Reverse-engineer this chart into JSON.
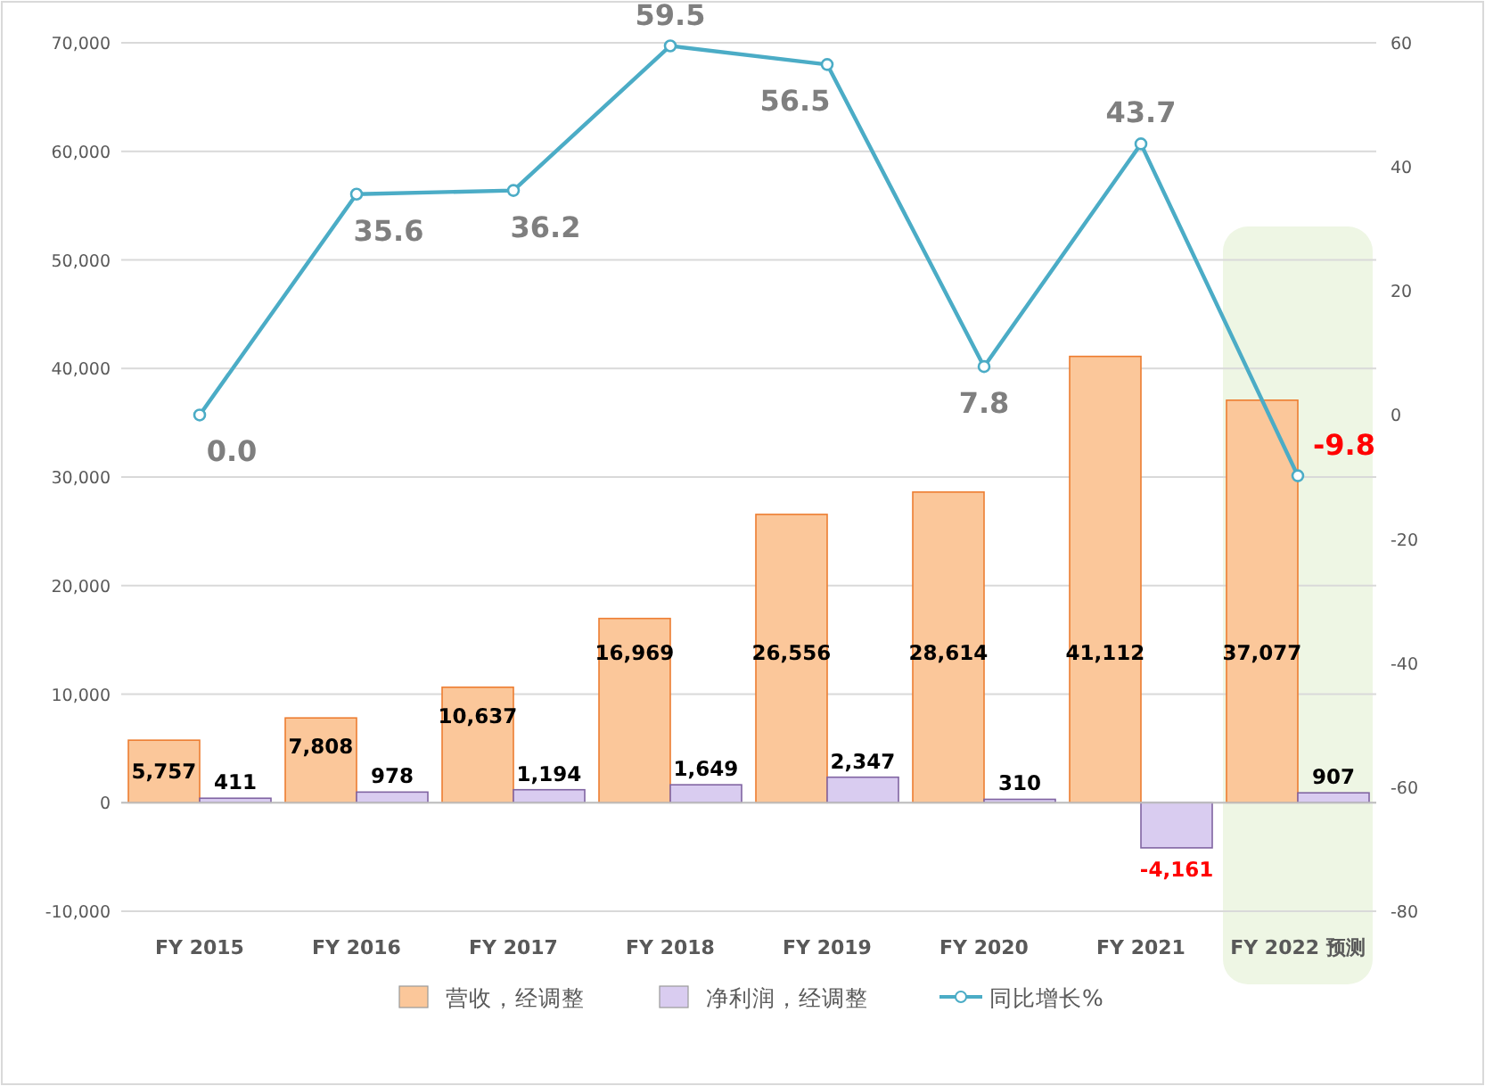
{
  "chart_data": {
    "type": "bar",
    "categories": [
      "FY 2015",
      "FY 2016",
      "FY 2017",
      "FY 2018",
      "FY 2019",
      "FY 2020",
      "FY 2021",
      "FY 2022 预测"
    ],
    "series": [
      {
        "name": "营收，经调整",
        "color": "#fbc79a",
        "values": [
          5757,
          7808,
          10637,
          16969,
          26556,
          28614,
          41112,
          37077
        ],
        "value_labels": [
          "5,757",
          "7,808",
          "10,637",
          "16,969",
          "26,556",
          "28,614",
          "41,112",
          "37,077"
        ]
      },
      {
        "name": "净利润，经调整",
        "color": "#d9ccf0",
        "values": [
          411,
          978,
          1194,
          1649,
          2347,
          310,
          -4161,
          907
        ],
        "value_labels": [
          "411",
          "978",
          "1,194",
          "1,649",
          "2,347",
          "310",
          "-4,161",
          "907"
        ]
      },
      {
        "name": "同比增长%",
        "type": "line",
        "axis": "y2",
        "color": "#4bacc6",
        "marker": "circle",
        "values": [
          0.0,
          35.6,
          36.2,
          59.5,
          56.5,
          7.8,
          43.7,
          -9.8
        ],
        "value_labels": [
          "0.0",
          "35.6",
          "36.2",
          "59.5",
          "56.5",
          "7.8",
          "43.7",
          "-9.8"
        ]
      }
    ],
    "ylim": [
      -10000,
      70000
    ],
    "yticks": [
      {
        "value": -10000,
        "label": "-10,000"
      },
      0,
      {
        "value": 10000,
        "label": "10,000"
      },
      {
        "value": 20000,
        "label": "20,000"
      },
      {
        "value": 30000,
        "label": "30,000"
      },
      {
        "value": 40000,
        "label": "40,000"
      },
      {
        "value": 50000,
        "label": "50,000"
      },
      {
        "value": 60000,
        "label": "60,000"
      },
      {
        "value": 70000,
        "label": "70,000"
      }
    ],
    "y2lim": [
      -80,
      60
    ],
    "y2ticks": [
      -80,
      -60,
      -40,
      -20,
      0,
      20,
      40,
      60
    ],
    "grid": "y",
    "legend": "bottom",
    "bands": [
      {
        "axis": "x",
        "from": "FY 2022 预测",
        "to": "FY 2022 预测",
        "color": "#eef6e4"
      }
    ]
  }
}
